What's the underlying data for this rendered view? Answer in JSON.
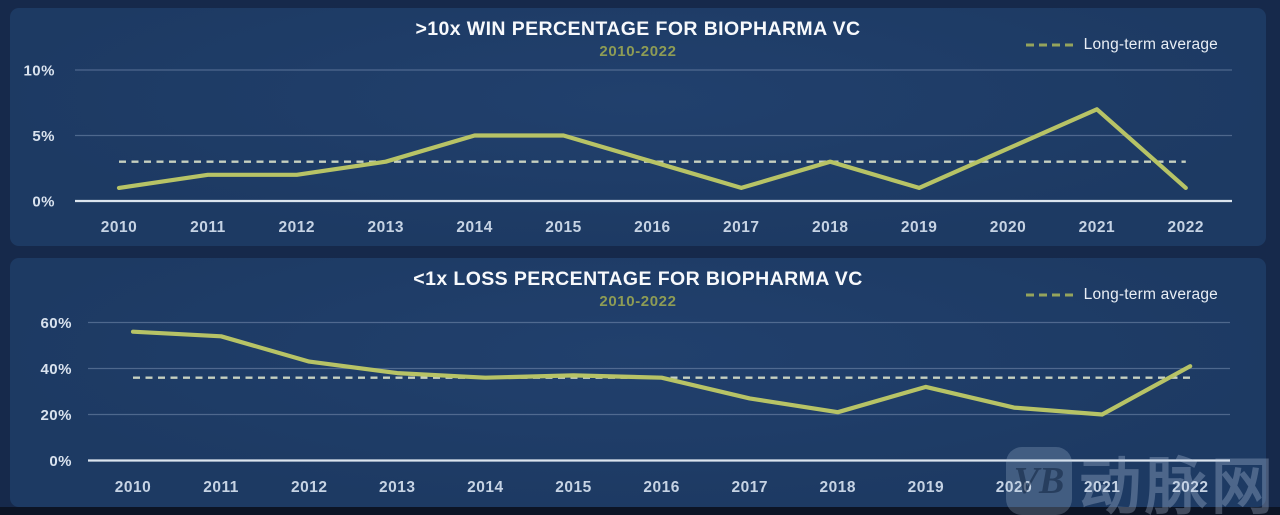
{
  "colors": {
    "page_bg": "#16294b",
    "panel_bg": "#1e3c67",
    "line": "#b7c366",
    "average_dash": "#c6d0c0",
    "legend_dash": "#95a45c",
    "subtitle": "#8e9c55",
    "title": "#f7f9fc",
    "axis": "#e6edf6"
  },
  "watermark": {
    "logo_text": "VB",
    "text": "动脉网"
  },
  "chart_data": [
    {
      "type": "line",
      "title": ">10x WIN PERCENTAGE FOR BIOPHARMA VC",
      "subtitle": "2010-2022",
      "legend_label": "Long-term average",
      "legend_position": "top-right",
      "grid": "horizontal",
      "x": [
        "2010",
        "2011",
        "2012",
        "2013",
        "2014",
        "2015",
        "2016",
        "2017",
        "2018",
        "2019",
        "2020",
        "2021",
        "2022"
      ],
      "series": [
        {
          "name": ">10x win percentage",
          "values": [
            1,
            2,
            2,
            3,
            5,
            5,
            3,
            1,
            3,
            1,
            4,
            7,
            1
          ]
        }
      ],
      "long_term_average": 3,
      "ylim": [
        0,
        10
      ],
      "yticks": [
        0,
        5,
        10
      ],
      "ytick_labels": [
        "0%",
        "5%",
        "10%"
      ]
    },
    {
      "type": "line",
      "title": "<1x LOSS PERCENTAGE FOR BIOPHARMA VC",
      "subtitle": "2010-2022",
      "legend_label": "Long-term average",
      "legend_position": "top-right",
      "grid": "horizontal",
      "x": [
        "2010",
        "2011",
        "2012",
        "2013",
        "2014",
        "2015",
        "2016",
        "2017",
        "2018",
        "2019",
        "2020",
        "2021",
        "2022"
      ],
      "series": [
        {
          "name": "<1x loss percentage",
          "values": [
            56,
            54,
            43,
            38,
            36,
            37,
            36,
            27,
            21,
            32,
            23,
            20,
            41
          ]
        }
      ],
      "long_term_average": 36,
      "ylim": [
        0,
        60
      ],
      "yticks": [
        0,
        20,
        40,
        60
      ],
      "ytick_labels": [
        "0%",
        "20%",
        "40%",
        "60%"
      ]
    }
  ]
}
